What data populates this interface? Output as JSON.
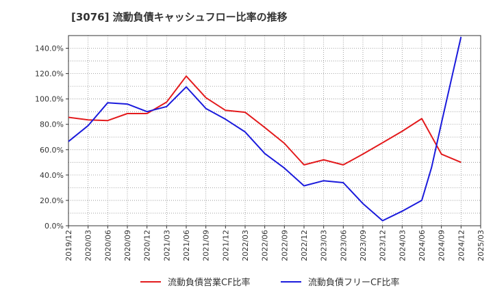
{
  "chart_data": {
    "type": "line",
    "title": "[3076]  流動負債キャッシュフロー比率の推移",
    "xlabel": "",
    "ylabel": "",
    "grid": true,
    "legend_position": "bottom",
    "ylim": [
      0,
      150
    ],
    "y_ticks": [
      "0.0%",
      "20.0%",
      "40.0%",
      "60.0%",
      "80.0%",
      "100.0%",
      "120.0%",
      "140.0%"
    ],
    "y_tick_values": [
      0,
      20,
      40,
      60,
      80,
      100,
      120,
      140
    ],
    "categories": [
      "2019/12",
      "2020/03",
      "2020/06",
      "2020/09",
      "2020/12",
      "2021/03",
      "2021/06",
      "2021/09",
      "2021/12",
      "2022/03",
      "2022/06",
      "2022/09",
      "2022/12",
      "2023/03",
      "2023/06",
      "2023/09",
      "2023/12",
      "2024/03",
      "2024/06",
      "2024/09",
      "2024/12",
      "2025/03"
    ],
    "series": [
      {
        "name": "流動負債営業CF比率",
        "color": "#e31a1c",
        "values": [
          85.5,
          83.5,
          83.0,
          88.5,
          88.5,
          97.5,
          118.0,
          101.0,
          91.0,
          89.5,
          77.5,
          65.0,
          48.0,
          52.0,
          48.0,
          56.5,
          65.5,
          74.5,
          84.5,
          56.5,
          50.0,
          null
        ]
      },
      {
        "name": "流動負債フリーCF比率",
        "color": "#1a1adc",
        "values": [
          66.5,
          79.0,
          97.0,
          96.0,
          90.0,
          94.0,
          109.5,
          92.5,
          84.0,
          74.0,
          57.0,
          45.5,
          31.5,
          35.5,
          34.0,
          17.5,
          4.0,
          11.5,
          20.0,
          81.0,
          149.0,
          null
        ],
        "extra_points": [
          {
            "x": 18.5,
            "y": 46.0
          }
        ]
      }
    ]
  }
}
